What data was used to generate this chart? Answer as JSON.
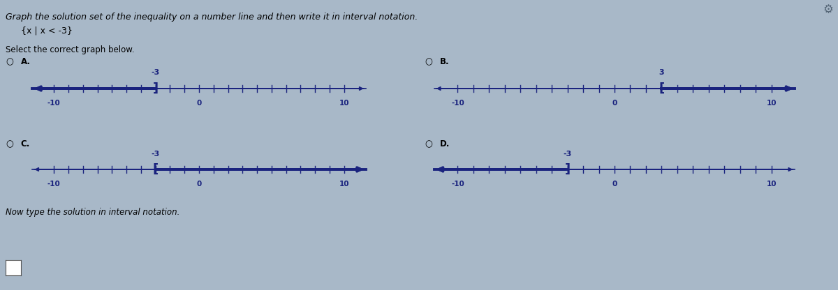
{
  "bg_color": "#a8b8c8",
  "title_text": "Graph the solution set of the inequality on a number line and then write it in interval notation.",
  "set_notation": "{x | x < -3}",
  "select_text": "Select the correct graph below.",
  "interval_text": "Now type the solution in interval notation.",
  "graphs": [
    {
      "label": "A",
      "point": -3,
      "shade_left": true,
      "shade_right": false,
      "closed": false
    },
    {
      "label": "B",
      "point": 3,
      "shade_left": false,
      "shade_right": true,
      "closed": false
    },
    {
      "label": "C",
      "point": -3,
      "shade_left": false,
      "shade_right": true,
      "closed": false
    },
    {
      "label": "D",
      "point": -3,
      "shade_left": true,
      "shade_right": false,
      "closed": false
    }
  ],
  "axis_min": -10,
  "axis_max": 10,
  "line_color": "#1a237e",
  "arrow_color": "#1a237e",
  "tick_color": "#1a237e",
  "font_size_title": 9,
  "font_size_label": 8.5,
  "font_size_tick": 7.5,
  "font_size_point": 8
}
